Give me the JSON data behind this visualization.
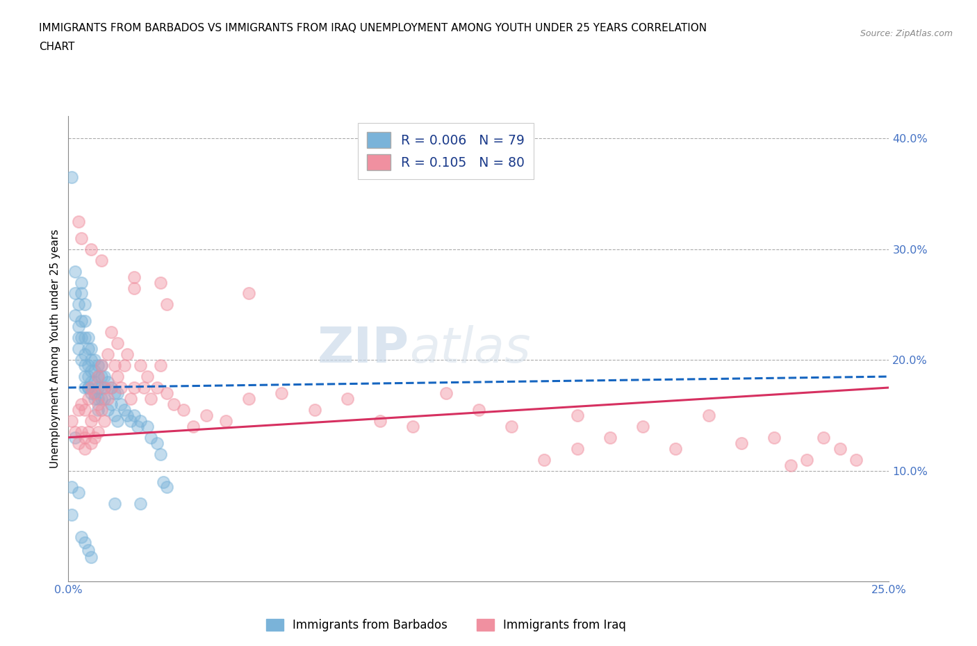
{
  "title_line1": "IMMIGRANTS FROM BARBADOS VS IMMIGRANTS FROM IRAQ UNEMPLOYMENT AMONG YOUTH UNDER 25 YEARS CORRELATION",
  "title_line2": "CHART",
  "source": "Source: ZipAtlas.com",
  "ylabel": "Unemployment Among Youth under 25 years",
  "xlim": [
    0.0,
    0.25
  ],
  "ylim": [
    0.0,
    0.42
  ],
  "barbados_color": "#7ab3d9",
  "iraq_color": "#f090a0",
  "barbados_R": 0.006,
  "barbados_N": 79,
  "iraq_R": 0.105,
  "iraq_N": 80,
  "legend_label_barbados": "Immigrants from Barbados",
  "legend_label_iraq": "Immigrants from Iraq",
  "watermark_zip": "ZIP",
  "watermark_atlas": "atlas",
  "tick_color": "#4472c4",
  "barbados_x": [
    0.001,
    0.002,
    0.002,
    0.002,
    0.003,
    0.003,
    0.003,
    0.003,
    0.004,
    0.004,
    0.004,
    0.004,
    0.004,
    0.005,
    0.005,
    0.005,
    0.005,
    0.005,
    0.005,
    0.005,
    0.006,
    0.006,
    0.006,
    0.006,
    0.006,
    0.007,
    0.007,
    0.007,
    0.007,
    0.007,
    0.008,
    0.008,
    0.008,
    0.008,
    0.008,
    0.009,
    0.009,
    0.009,
    0.009,
    0.009,
    0.01,
    0.01,
    0.01,
    0.01,
    0.011,
    0.011,
    0.011,
    0.012,
    0.012,
    0.013,
    0.013,
    0.014,
    0.014,
    0.015,
    0.015,
    0.016,
    0.017,
    0.018,
    0.019,
    0.02,
    0.021,
    0.022,
    0.024,
    0.025,
    0.027,
    0.028,
    0.029,
    0.03,
    0.001,
    0.001,
    0.002,
    0.003,
    0.004,
    0.005,
    0.006,
    0.007,
    0.022,
    0.014,
    0.006
  ],
  "barbados_y": [
    0.365,
    0.26,
    0.24,
    0.28,
    0.25,
    0.23,
    0.21,
    0.22,
    0.27,
    0.26,
    0.235,
    0.22,
    0.2,
    0.25,
    0.235,
    0.22,
    0.205,
    0.195,
    0.185,
    0.175,
    0.22,
    0.21,
    0.195,
    0.185,
    0.175,
    0.21,
    0.2,
    0.19,
    0.18,
    0.17,
    0.2,
    0.19,
    0.18,
    0.17,
    0.165,
    0.195,
    0.185,
    0.175,
    0.165,
    0.155,
    0.195,
    0.185,
    0.175,
    0.165,
    0.185,
    0.175,
    0.165,
    0.18,
    0.155,
    0.175,
    0.16,
    0.17,
    0.15,
    0.17,
    0.145,
    0.16,
    0.155,
    0.15,
    0.145,
    0.15,
    0.14,
    0.145,
    0.14,
    0.13,
    0.125,
    0.115,
    0.09,
    0.085,
    0.085,
    0.06,
    0.13,
    0.08,
    0.04,
    0.035,
    0.028,
    0.022,
    0.07,
    0.07,
    0.175
  ],
  "iraq_x": [
    0.001,
    0.002,
    0.003,
    0.003,
    0.004,
    0.004,
    0.005,
    0.005,
    0.005,
    0.006,
    0.006,
    0.007,
    0.007,
    0.007,
    0.008,
    0.008,
    0.008,
    0.009,
    0.009,
    0.009,
    0.01,
    0.01,
    0.011,
    0.011,
    0.012,
    0.012,
    0.013,
    0.013,
    0.014,
    0.015,
    0.015,
    0.016,
    0.017,
    0.018,
    0.019,
    0.02,
    0.022,
    0.023,
    0.024,
    0.025,
    0.027,
    0.028,
    0.03,
    0.032,
    0.035,
    0.038,
    0.042,
    0.048,
    0.055,
    0.065,
    0.075,
    0.085,
    0.095,
    0.105,
    0.115,
    0.125,
    0.135,
    0.145,
    0.155,
    0.165,
    0.175,
    0.185,
    0.195,
    0.205,
    0.215,
    0.22,
    0.225,
    0.23,
    0.235,
    0.24,
    0.01,
    0.02,
    0.03,
    0.02,
    0.007,
    0.004,
    0.003,
    0.028,
    0.055,
    0.155
  ],
  "iraq_y": [
    0.145,
    0.135,
    0.155,
    0.125,
    0.16,
    0.135,
    0.155,
    0.13,
    0.12,
    0.165,
    0.135,
    0.175,
    0.145,
    0.125,
    0.17,
    0.15,
    0.13,
    0.185,
    0.16,
    0.135,
    0.195,
    0.155,
    0.175,
    0.145,
    0.205,
    0.165,
    0.225,
    0.175,
    0.195,
    0.215,
    0.185,
    0.175,
    0.195,
    0.205,
    0.165,
    0.175,
    0.195,
    0.175,
    0.185,
    0.165,
    0.175,
    0.195,
    0.17,
    0.16,
    0.155,
    0.14,
    0.15,
    0.145,
    0.165,
    0.17,
    0.155,
    0.165,
    0.145,
    0.14,
    0.17,
    0.155,
    0.14,
    0.11,
    0.15,
    0.13,
    0.14,
    0.12,
    0.15,
    0.125,
    0.13,
    0.105,
    0.11,
    0.13,
    0.12,
    0.11,
    0.29,
    0.275,
    0.25,
    0.265,
    0.3,
    0.31,
    0.325,
    0.27,
    0.26,
    0.12
  ],
  "barbados_trend_x": [
    0.0,
    0.25
  ],
  "barbados_trend_y": [
    0.175,
    0.185
  ],
  "iraq_trend_x": [
    0.0,
    0.25
  ],
  "iraq_trend_y": [
    0.13,
    0.175
  ]
}
